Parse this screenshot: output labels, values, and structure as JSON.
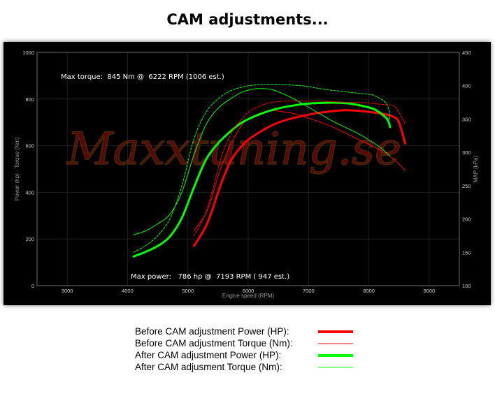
{
  "title": "CAM adjustments...",
  "watermark": "Maxxtuning.se",
  "chart_data": {
    "type": "line",
    "xlabel": "Engine speed (RPM)",
    "ylabel": "Power (hp) - Torque (Nm)",
    "y2label": "MAP (kPa)",
    "xlim": [
      2500,
      9500
    ],
    "ylim": [
      0,
      1000
    ],
    "y2lim": [
      100,
      450
    ],
    "xticks": [
      3000,
      4000,
      5000,
      6000,
      7000,
      8000,
      9000
    ],
    "yticks": [
      0,
      200,
      400,
      600,
      800,
      1000
    ],
    "y2ticks": [
      100,
      150,
      200,
      250,
      300,
      350,
      400,
      450
    ],
    "grid": true,
    "annotations": [
      "Max torque:  845 Nm @  6222 RPM (1006 est.)",
      "Max power:   786 hp @  7193 RPM ( 947 est.)"
    ],
    "series": [
      {
        "name": "Before CAM adjustment Power (HP):",
        "color": "#ff0000",
        "width": 3,
        "style": "solid",
        "axis": "left",
        "x": [
          5100,
          5200,
          5300,
          5400,
          5500,
          5600,
          5700,
          5800,
          5900,
          6000,
          6200,
          6400,
          6600,
          6800,
          7000,
          7200,
          7400,
          7600,
          7800,
          8000,
          8200,
          8400,
          8500,
          8600
        ],
        "y": [
          170,
          210,
          255,
          320,
          400,
          470,
          530,
          570,
          600,
          625,
          660,
          688,
          708,
          722,
          733,
          742,
          748,
          752,
          750,
          745,
          738,
          725,
          700,
          610
        ]
      },
      {
        "name": "Before CAM adjustment Torque (Nm):",
        "color": "#ff0000",
        "width": 1,
        "style": "solid",
        "axis": "left",
        "x": [
          5100,
          5200,
          5300,
          5400,
          5500,
          5600,
          5700,
          5800,
          5900,
          6000,
          6200,
          6400,
          6600,
          6800,
          7000,
          7200,
          7400,
          7600,
          7800,
          8000,
          8200,
          8400,
          8600
        ],
        "y": [
          235,
          270,
          310,
          380,
          470,
          540,
          600,
          650,
          690,
          715,
          740,
          750,
          745,
          735,
          718,
          700,
          680,
          655,
          630,
          605,
          580,
          545,
          495
        ]
      },
      {
        "name": "After CAM adjustment Power (HP):",
        "color": "#00ff00",
        "width": 3,
        "style": "solid",
        "axis": "left",
        "x": [
          4100,
          4300,
          4500,
          4700,
          4900,
          5100,
          5300,
          5500,
          5700,
          5900,
          6100,
          6300,
          6500,
          6700,
          6900,
          7100,
          7300,
          7500,
          7700,
          7900,
          8100,
          8300,
          8350
        ],
        "y": [
          125,
          145,
          170,
          210,
          290,
          420,
          540,
          610,
          660,
          700,
          725,
          745,
          760,
          770,
          778,
          782,
          784,
          784,
          780,
          770,
          755,
          715,
          680
        ]
      },
      {
        "name": "After CAM adjusment Torque (Nm):",
        "color": "#00ff00",
        "width": 1,
        "style": "solid",
        "axis": "left",
        "x": [
          4100,
          4300,
          4500,
          4700,
          4900,
          5100,
          5300,
          5500,
          5700,
          5900,
          6100,
          6222,
          6400,
          6600,
          6800,
          7000,
          7200,
          7400,
          7600,
          7800,
          8000,
          8200,
          8350
        ],
        "y": [
          218,
          235,
          265,
          305,
          400,
          560,
          690,
          760,
          800,
          830,
          843,
          845,
          840,
          820,
          795,
          765,
          735,
          705,
          680,
          655,
          625,
          590,
          555
        ]
      },
      {
        "name": "",
        "color": "#ff0000",
        "width": 1,
        "style": "dashed",
        "axis": "right",
        "x": [
          5100,
          5200,
          5300,
          5400,
          5500,
          5600,
          5700,
          5800,
          5900,
          6000,
          6200,
          6400,
          6600,
          6800,
          7000,
          7200,
          7400,
          7600,
          7800,
          8000,
          8200,
          8400,
          8500,
          8600
        ],
        "y": [
          175,
          190,
          210,
          240,
          275,
          305,
          325,
          340,
          350,
          360,
          370,
          375,
          377,
          377,
          377,
          377,
          376,
          375,
          375,
          374,
          372,
          370,
          360,
          343
        ]
      },
      {
        "name": "",
        "color": "#00ff00",
        "width": 1,
        "style": "dashed",
        "axis": "right",
        "x": [
          4100,
          4300,
          4500,
          4700,
          4900,
          5100,
          5300,
          5500,
          5700,
          5900,
          6100,
          6300,
          6500,
          6700,
          6900,
          7100,
          7300,
          7500,
          7700,
          7900,
          8100,
          8300,
          8350
        ],
        "y": [
          150,
          160,
          175,
          200,
          250,
          320,
          360,
          380,
          392,
          398,
          401,
          402,
          402,
          401,
          400,
          397,
          394,
          392,
          390,
          388,
          385,
          372,
          348
        ]
      }
    ]
  }
}
